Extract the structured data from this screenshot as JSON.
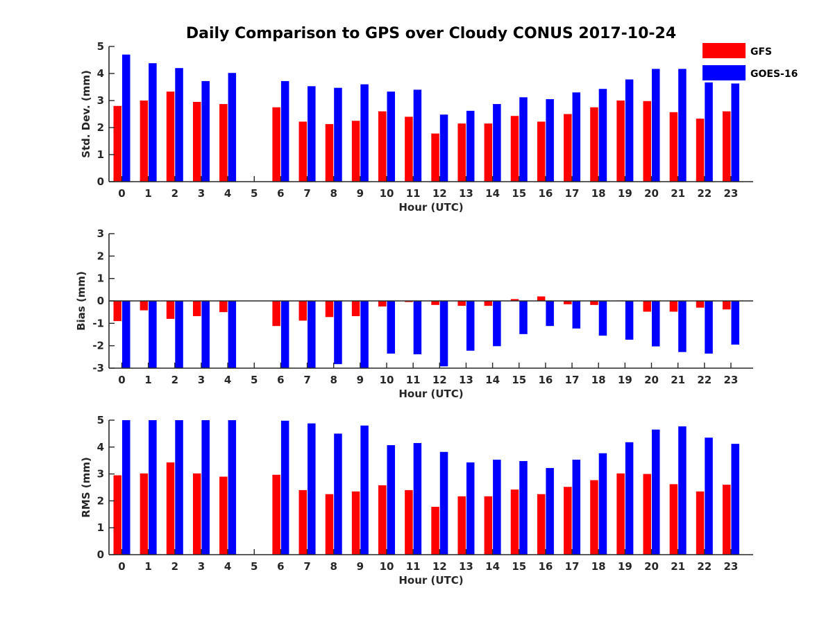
{
  "chart_data": [
    {
      "type": "bar",
      "title": "Daily Comparison to GPS over Cloudy CONUS 2017-10-24",
      "xlabel": "Hour (UTC)",
      "ylabel": "Std. Dev. (mm)",
      "ylim": [
        0,
        5
      ],
      "yticks": [
        "0",
        "1",
        "2",
        "3",
        "4",
        "5"
      ],
      "categories": [
        "0",
        "1",
        "2",
        "3",
        "4",
        "5",
        "6",
        "7",
        "8",
        "9",
        "10",
        "11",
        "12",
        "13",
        "14",
        "15",
        "16",
        "17",
        "18",
        "19",
        "20",
        "21",
        "22",
        "23"
      ],
      "series": [
        {
          "name": "GFS",
          "color": "#ff0000",
          "values": [
            2.8,
            3.0,
            3.33,
            2.95,
            2.87,
            null,
            2.75,
            2.22,
            2.13,
            2.25,
            2.6,
            2.4,
            1.78,
            2.15,
            2.15,
            2.43,
            2.22,
            2.5,
            2.75,
            3.0,
            2.98,
            2.57,
            2.33,
            2.6
          ]
        },
        {
          "name": "GOES-16",
          "color": "#0000ff",
          "values": [
            4.7,
            4.38,
            4.2,
            3.72,
            4.02,
            null,
            3.72,
            3.53,
            3.47,
            3.6,
            3.33,
            3.4,
            2.48,
            2.62,
            2.87,
            3.12,
            3.05,
            3.3,
            3.43,
            3.78,
            4.17,
            4.17,
            3.67,
            3.63
          ]
        }
      ],
      "legend": {
        "position": "top-right",
        "entries": [
          "GFS",
          "GOES-16"
        ]
      }
    },
    {
      "type": "bar",
      "xlabel": "Hour (UTC)",
      "ylabel": "Bias (mm)",
      "ylim": [
        -3,
        3
      ],
      "yticks": [
        "-3",
        "-2",
        "-1",
        "0",
        "1",
        "2",
        "3"
      ],
      "zero_line": true,
      "categories": [
        "0",
        "1",
        "2",
        "3",
        "4",
        "5",
        "6",
        "7",
        "8",
        "9",
        "10",
        "11",
        "12",
        "13",
        "14",
        "15",
        "16",
        "17",
        "18",
        "19",
        "20",
        "21",
        "22",
        "23"
      ],
      "series": [
        {
          "name": "GFS",
          "color": "#ff0000",
          "values": [
            -0.9,
            -0.42,
            -0.8,
            -0.68,
            -0.5,
            null,
            -1.12,
            -0.88,
            -0.72,
            -0.68,
            -0.25,
            -0.05,
            -0.18,
            -0.22,
            -0.22,
            0.08,
            0.2,
            -0.15,
            -0.18,
            0.02,
            -0.48,
            -0.48,
            -0.3,
            -0.38
          ]
        },
        {
          "name": "GOES-16",
          "color": "#0000ff",
          "values": [
            -3.0,
            -3.0,
            -3.0,
            -3.0,
            -3.0,
            null,
            -3.0,
            -3.0,
            -2.82,
            -3.0,
            -2.35,
            -2.38,
            -2.92,
            -2.22,
            -2.02,
            -1.48,
            -1.12,
            -1.23,
            -1.55,
            -1.73,
            -2.03,
            -2.28,
            -2.35,
            -1.95
          ]
        }
      ]
    },
    {
      "type": "bar",
      "xlabel": "Hour (UTC)",
      "ylabel": "RMS (mm)",
      "ylim": [
        0,
        5
      ],
      "yticks": [
        "0",
        "1",
        "2",
        "3",
        "4",
        "5"
      ],
      "categories": [
        "0",
        "1",
        "2",
        "3",
        "4",
        "5",
        "6",
        "7",
        "8",
        "9",
        "10",
        "11",
        "12",
        "13",
        "14",
        "15",
        "16",
        "17",
        "18",
        "19",
        "20",
        "21",
        "22",
        "23"
      ],
      "series": [
        {
          "name": "GFS",
          "color": "#ff0000",
          "values": [
            2.95,
            3.02,
            3.43,
            3.02,
            2.9,
            null,
            2.97,
            2.4,
            2.25,
            2.35,
            2.58,
            2.4,
            1.78,
            2.17,
            2.17,
            2.42,
            2.25,
            2.52,
            2.77,
            3.02,
            3.0,
            2.62,
            2.35,
            2.6
          ]
        },
        {
          "name": "GOES-16",
          "color": "#0000ff",
          "values": [
            5.0,
            5.0,
            5.0,
            5.0,
            5.0,
            null,
            4.98,
            4.88,
            4.5,
            4.8,
            4.07,
            4.15,
            3.82,
            3.43,
            3.53,
            3.48,
            3.22,
            3.53,
            3.77,
            4.18,
            4.65,
            4.77,
            4.35,
            4.12
          ]
        }
      ]
    }
  ]
}
